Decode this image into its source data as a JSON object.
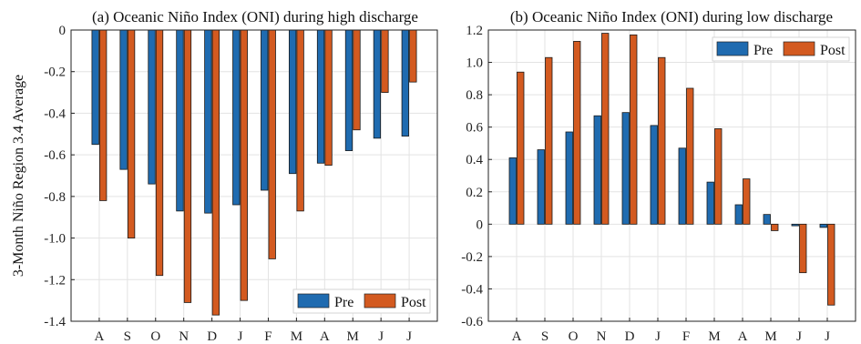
{
  "ylabel": "3-Month Niño Region 3.4 Average",
  "colors": {
    "pre": "#1f6bb0",
    "post": "#d35a20",
    "grid": "#e3e3e3",
    "axis": "#222222"
  },
  "chart_data": [
    {
      "type": "bar",
      "title": "(a) Oceanic Niño Index (ONI) during high discharge",
      "categories": [
        "A",
        "S",
        "O",
        "N",
        "D",
        "J",
        "F",
        "M",
        "A",
        "M",
        "J",
        "J"
      ],
      "series": [
        {
          "name": "Pre",
          "values": [
            -0.55,
            -0.67,
            -0.74,
            -0.87,
            -0.88,
            -0.84,
            -0.77,
            -0.69,
            -0.64,
            -0.58,
            -0.52,
            -0.51
          ]
        },
        {
          "name": "Post",
          "values": [
            -0.82,
            -1.0,
            -1.18,
            -1.31,
            -1.37,
            -1.3,
            -1.1,
            -0.87,
            -0.65,
            -0.48,
            -0.3,
            -0.25
          ]
        }
      ],
      "ylim": [
        -1.4,
        0
      ],
      "yticks": [
        "0",
        "-0.2",
        "-0.4",
        "-0.6",
        "-0.8",
        "-1.0",
        "-1.2",
        "-1.4"
      ],
      "ytick_values": [
        0,
        -0.2,
        -0.4,
        -0.6,
        -0.8,
        -1.0,
        -1.2,
        -1.4
      ],
      "grid": true,
      "legend_placement": "bottom-right"
    },
    {
      "type": "bar",
      "title": "(b) Oceanic Niño Index (ONI) during low discharge",
      "categories": [
        "A",
        "S",
        "O",
        "N",
        "D",
        "J",
        "F",
        "M",
        "A",
        "M",
        "J",
        "J"
      ],
      "series": [
        {
          "name": "Pre",
          "values": [
            0.41,
            0.46,
            0.57,
            0.67,
            0.69,
            0.61,
            0.47,
            0.26,
            0.12,
            0.06,
            -0.01,
            -0.02
          ]
        },
        {
          "name": "Post",
          "values": [
            0.94,
            1.03,
            1.13,
            1.18,
            1.17,
            1.03,
            0.84,
            0.59,
            0.28,
            -0.04,
            -0.3,
            -0.5
          ]
        }
      ],
      "ylim": [
        -0.6,
        1.2
      ],
      "yticks": [
        "1.2",
        "1.0",
        "0.8",
        "0.6",
        "0.4",
        "0.2",
        "0",
        "-0.2",
        "-0.4",
        "-0.6"
      ],
      "ytick_values": [
        1.2,
        1.0,
        0.8,
        0.6,
        0.4,
        0.2,
        0,
        -0.2,
        -0.4,
        -0.6
      ],
      "grid": true,
      "legend_placement": "top-right"
    }
  ]
}
